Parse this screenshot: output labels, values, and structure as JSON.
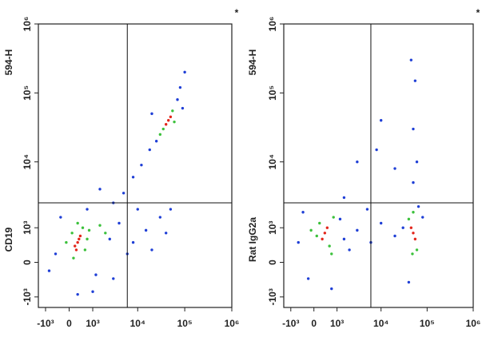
{
  "chart_data": [
    {
      "type": "scatter",
      "scale": "biexponential",
      "x_label": "CD19",
      "y_label": "594-H",
      "annotation": "*",
      "xlim": [
        -1500,
        1000000
      ],
      "ylim": [
        -1500,
        1000000
      ],
      "xticks": [
        {
          "value": -1000,
          "label": "-10³"
        },
        0,
        {
          "value": 1000,
          "label": "10³"
        },
        {
          "value": 10000,
          "label": "10⁴"
        },
        {
          "value": 100000,
          "label": "10⁵"
        },
        {
          "value": 1000000,
          "label": "10⁶"
        }
      ],
      "yticks": [
        {
          "value": -1000,
          "label": "-10³"
        },
        0,
        {
          "value": 1000,
          "label": "10³"
        },
        {
          "value": 10000,
          "label": "10⁴"
        },
        {
          "value": 100000,
          "label": "10⁵"
        },
        {
          "value": 1000000,
          "label": "10⁶"
        }
      ],
      "gate": {
        "x": 6000,
        "y": 2500
      },
      "series": [
        {
          "color": "#1f3fd6",
          "x": [
            -500,
            -300,
            1200,
            2500,
            4000,
            8000,
            15000,
            20000,
            30000,
            10000,
            3000,
            5000,
            8000,
            12000,
            18000,
            25000,
            70000,
            90000,
            80000,
            100000,
            20000,
            1000,
            -800,
            300,
            1500,
            700,
            40000,
            6000,
            50000,
            3000
          ],
          "y": [
            200,
            1500,
            -300,
            600,
            1200,
            500,
            900,
            300,
            1500,
            2000,
            2500,
            3500,
            6000,
            9000,
            15000,
            20000,
            80000,
            60000,
            120000,
            200000,
            50000,
            -800,
            -200,
            -900,
            4000,
            2000,
            800,
            200,
            2000,
            -400
          ]
        },
        {
          "color": "#3cc13c",
          "x": [
            100,
            500,
            600,
            150,
            700,
            300,
            -100,
            800,
            55000,
            35000,
            60000,
            30000,
            2000,
            1500
          ],
          "y": [
            800,
            1000,
            300,
            100,
            600,
            1200,
            500,
            900,
            55000,
            30000,
            38000,
            25000,
            800,
            1100
          ]
        },
        {
          "color": "#e3261c",
          "x": [
            300,
            200,
            400,
            250,
            350,
            45000,
            50000,
            40000
          ],
          "y": [
            500,
            400,
            700,
            300,
            600,
            40000,
            45000,
            35000
          ]
        }
      ]
    },
    {
      "type": "scatter",
      "scale": "biexponential",
      "x_label": "Rat IgG2a",
      "y_label": "594-H",
      "annotation": "*",
      "xlim": [
        -1500,
        1000000
      ],
      "ylim": [
        -1500,
        1000000
      ],
      "xticks": [
        {
          "value": -1000,
          "label": "-10³"
        },
        0,
        {
          "value": 1000,
          "label": "10³"
        },
        {
          "value": 10000,
          "label": "10⁴"
        },
        {
          "value": 100000,
          "label": "10⁵"
        },
        {
          "value": 1000000,
          "label": "10⁶"
        }
      ],
      "yticks": [
        {
          "value": -1000,
          "label": "-10³"
        },
        0,
        {
          "value": 1000,
          "label": "10³"
        },
        {
          "value": 10000,
          "label": "10⁴"
        },
        {
          "value": 100000,
          "label": "10⁵"
        },
        {
          "value": 1000000,
          "label": "10⁶"
        }
      ],
      "gate": {
        "x": 6000,
        "y": 2500
      },
      "series": [
        {
          "color": "#1f3fd6",
          "x": [
            -600,
            -400,
            1500,
            3000,
            6000,
            10000,
            20000,
            30000,
            1200,
            2000,
            5000,
            65000,
            50000,
            50000,
            45000,
            55000,
            60000,
            10000,
            3000,
            20000,
            80000,
            700,
            -200,
            40000,
            1500,
            8000
          ],
          "y": [
            500,
            1800,
            600,
            900,
            500,
            1200,
            700,
            1000,
            1400,
            300,
            2000,
            2200,
            5000,
            30000,
            300000,
            150000,
            10000,
            40000,
            10000,
            8000,
            1500,
            -700,
            -400,
            -500,
            3000,
            15000
          ]
        },
        {
          "color": "#3cc13c",
          "x": [
            200,
            600,
            100,
            800,
            -100,
            700,
            40000,
            60000,
            50000,
            48000
          ],
          "y": [
            1200,
            400,
            700,
            1500,
            900,
            200,
            1400,
            300,
            1800,
            200
          ]
        },
        {
          "color": "#e3261c",
          "x": [
            400,
            300,
            500,
            50000,
            45000,
            55000
          ],
          "y": [
            800,
            600,
            1000,
            800,
            1000,
            600
          ]
        }
      ]
    }
  ]
}
